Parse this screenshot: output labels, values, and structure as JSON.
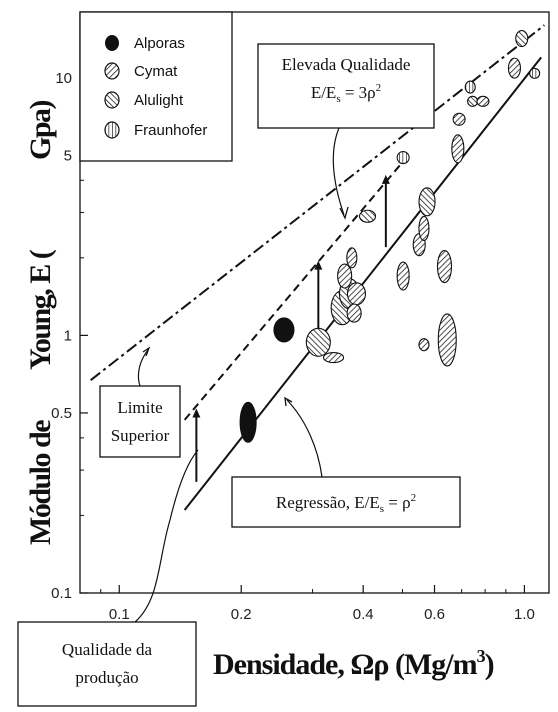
{
  "chart_data": {
    "type": "scatter",
    "x_scale": "log",
    "y_scale": "log",
    "xlim": [
      0.08,
      1.15
    ],
    "ylim": [
      0.1,
      18
    ],
    "x_ticks": [
      {
        "v": 0.1,
        "label": "0.1"
      },
      {
        "v": 0.2,
        "label": "0.2"
      },
      {
        "v": 0.4,
        "label": "0.4"
      },
      {
        "v": 0.6,
        "label": "0.6"
      },
      {
        "v": 1.0,
        "label": "1.0"
      }
    ],
    "y_ticks": [
      {
        "v": 0.1,
        "label": "0.1"
      },
      {
        "v": 0.5,
        "label": "0.5"
      },
      {
        "v": 1,
        "label": "1"
      },
      {
        "v": 5,
        "label": "5"
      },
      {
        "v": 10,
        "label": "10"
      }
    ],
    "xlabel_text": "Densidade,",
    "xlabel_symbol": "Ωρ",
    "xlabel_unit": "(Mg/m",
    "xlabel_unit_sup": "3",
    "xlabel_unit_close": ")",
    "ylabel_left": "Módulo de",
    "ylabel_right": "Young, E (",
    "ylabel_unit": "Gpa)",
    "legend": [
      {
        "name": "Alporas",
        "pattern": "solid"
      },
      {
        "name": "Cymat",
        "pattern": "diag-fwd"
      },
      {
        "name": "Alulight",
        "pattern": "diag-back"
      },
      {
        "name": "Fraunhofer",
        "pattern": "vertical"
      }
    ],
    "lines": [
      {
        "name": "regressao",
        "style": "solid",
        "x": [
          0.145,
          1.1
        ],
        "y": [
          0.21,
          12.0
        ]
      },
      {
        "name": "elevada",
        "style": "dashed",
        "x": [
          0.145,
          0.5
        ],
        "y": [
          0.47,
          4.7
        ]
      },
      {
        "name": "limite",
        "style": "dashdot",
        "x": [
          0.085,
          1.12
        ],
        "y": [
          0.67,
          16.0
        ]
      }
    ],
    "arrows": [
      {
        "x": 0.155,
        "y_from": 0.27,
        "y_to": 0.52
      },
      {
        "x": 0.31,
        "y_from": 1.02,
        "y_to": 1.95
      },
      {
        "x": 0.455,
        "y_from": 2.2,
        "y_to": 4.2
      }
    ],
    "points": [
      {
        "series": "Alporas",
        "x": 0.255,
        "y": 1.05,
        "rx": 10,
        "ry": 12
      },
      {
        "series": "Alporas",
        "x": 0.208,
        "y": 0.46,
        "rx": 8,
        "ry": 20
      },
      {
        "series": "Alulight",
        "x": 0.31,
        "y": 0.94,
        "rx": 12,
        "ry": 14
      },
      {
        "series": "Cymat",
        "x": 0.338,
        "y": 0.82,
        "rx": 10,
        "ry": 5
      },
      {
        "series": "Alulight",
        "x": 0.355,
        "y": 1.28,
        "rx": 11,
        "ry": 17
      },
      {
        "series": "Alulight",
        "x": 0.37,
        "y": 1.45,
        "rx": 10,
        "ry": 15
      },
      {
        "series": "Cymat",
        "x": 0.36,
        "y": 1.7,
        "rx": 7,
        "ry": 12
      },
      {
        "series": "Cymat",
        "x": 0.385,
        "y": 1.45,
        "rx": 9,
        "ry": 11
      },
      {
        "series": "Cymat",
        "x": 0.38,
        "y": 1.22,
        "rx": 7,
        "ry": 9
      },
      {
        "series": "Cymat",
        "x": 0.375,
        "y": 2.0,
        "rx": 5,
        "ry": 10
      },
      {
        "series": "Alulight",
        "x": 0.41,
        "y": 2.9,
        "rx": 8,
        "ry": 6
      },
      {
        "series": "Cymat",
        "x": 0.502,
        "y": 1.7,
        "rx": 6,
        "ry": 14
      },
      {
        "series": "Fraunhofer",
        "x": 0.502,
        "y": 4.9,
        "rx": 6,
        "ry": 6
      },
      {
        "series": "Cymat",
        "x": 0.55,
        "y": 2.25,
        "rx": 6,
        "ry": 11
      },
      {
        "series": "Cymat",
        "x": 0.565,
        "y": 2.6,
        "rx": 5,
        "ry": 12
      },
      {
        "series": "Alulight",
        "x": 0.575,
        "y": 3.3,
        "rx": 8,
        "ry": 14
      },
      {
        "series": "Cymat",
        "x": 0.565,
        "y": 0.92,
        "rx": 5,
        "ry": 6
      },
      {
        "series": "Cymat",
        "x": 0.635,
        "y": 1.85,
        "rx": 7,
        "ry": 16
      },
      {
        "series": "Cymat",
        "x": 0.645,
        "y": 0.96,
        "rx": 9,
        "ry": 26
      },
      {
        "series": "Cymat",
        "x": 0.685,
        "y": 5.3,
        "rx": 6,
        "ry": 14
      },
      {
        "series": "Cymat",
        "x": 0.69,
        "y": 6.9,
        "rx": 6,
        "ry": 6
      },
      {
        "series": "Fraunhofer",
        "x": 0.735,
        "y": 9.2,
        "rx": 5,
        "ry": 6
      },
      {
        "series": "Alulight",
        "x": 0.745,
        "y": 8.1,
        "rx": 5,
        "ry": 5
      },
      {
        "series": "Cymat",
        "x": 0.79,
        "y": 8.1,
        "rx": 6,
        "ry": 5
      },
      {
        "series": "Cymat",
        "x": 0.945,
        "y": 10.9,
        "rx": 6,
        "ry": 10
      },
      {
        "series": "Alulight",
        "x": 0.985,
        "y": 14.2,
        "rx": 6,
        "ry": 8
      },
      {
        "series": "Fraunhofer",
        "x": 1.06,
        "y": 10.4,
        "rx": 5,
        "ry": 5
      }
    ],
    "annotations": {
      "elevada_line1": "Elevada Qualidade",
      "elevada_line2_a": "E/E",
      "elevada_line2_sub": "s",
      "elevada_line2_b": " = 3ρ",
      "elevada_line2_sup": "2",
      "limite_line1": "Limite",
      "limite_line2": "Superior",
      "regressao_a": "Regressão, E/E",
      "regressao_sub": "s",
      "regressao_b": " = ρ",
      "regressao_sup": "2",
      "qualidade_line1": "Qualidade da",
      "qualidade_line2": "produção"
    }
  }
}
